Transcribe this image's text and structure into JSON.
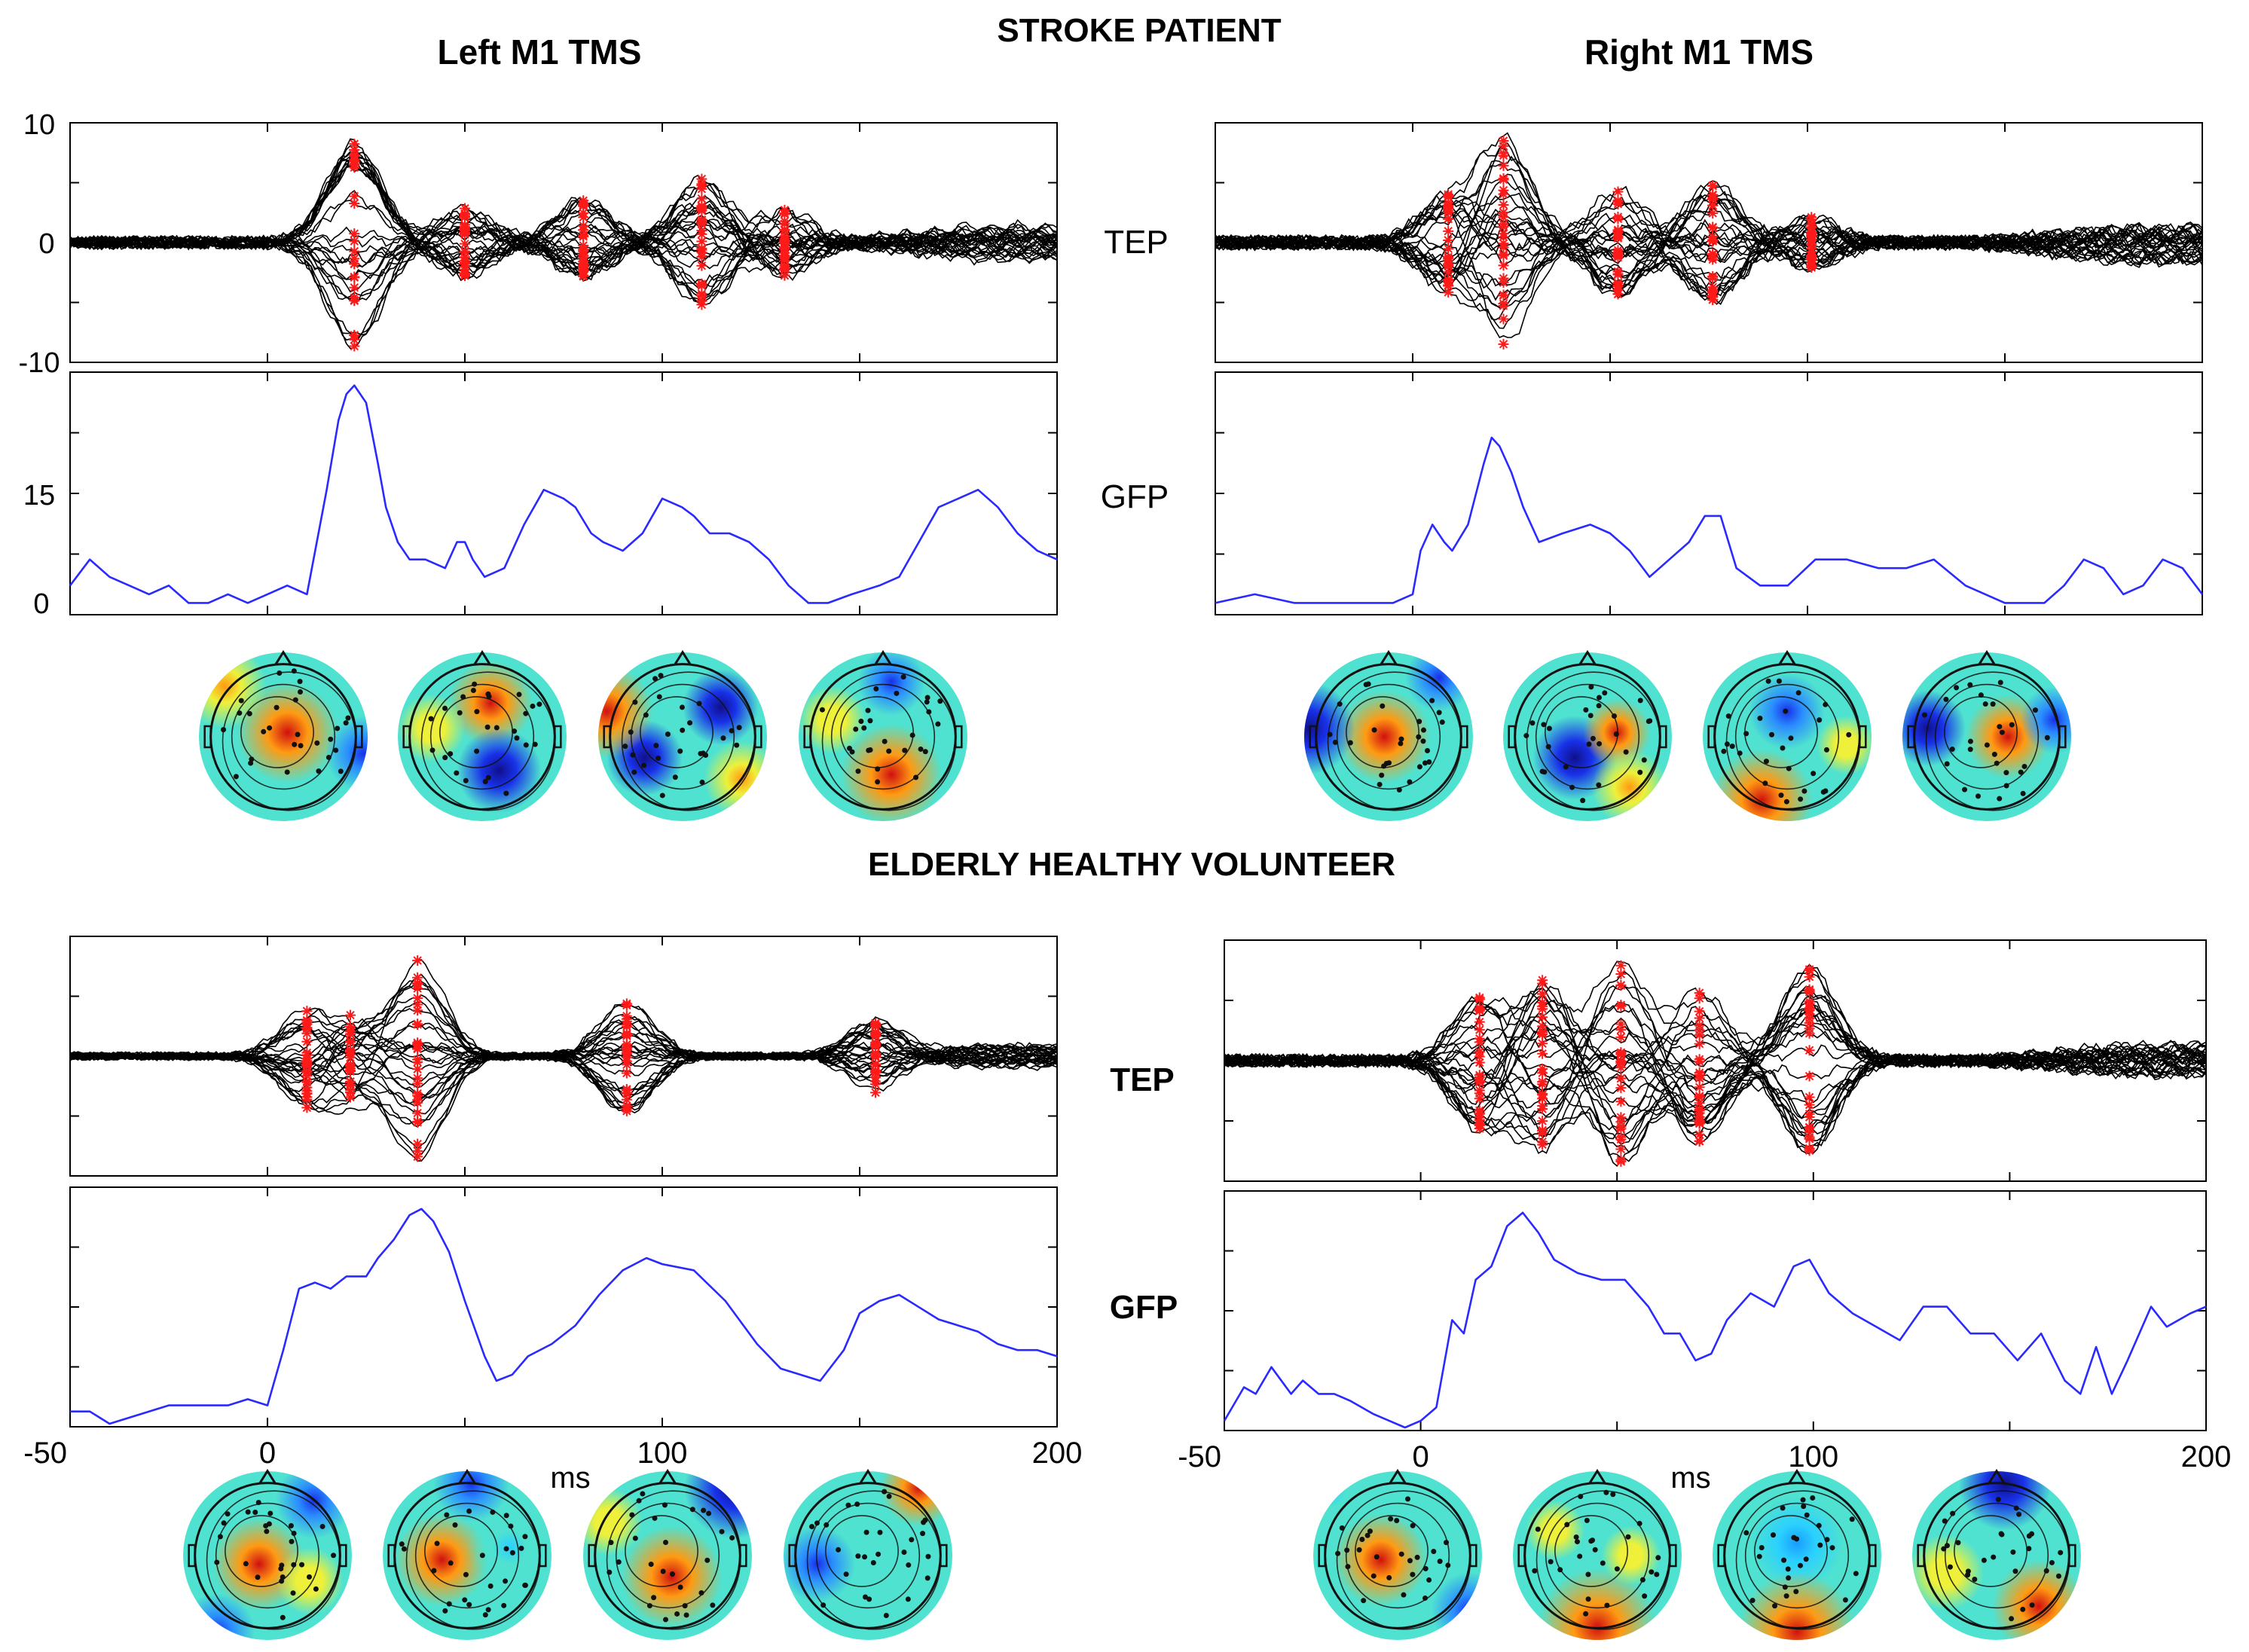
{
  "titles": {
    "stroke": "STROKE PATIENT",
    "healthy": "ELDERLY HEALTHY VOLUNTEER",
    "left_col": "Left M1 TMS",
    "right_col": "Right M1 TMS"
  },
  "row_labels": {
    "tep_top": "TEP",
    "gfp_top": "GFP",
    "tep_bottom": "TEP",
    "gfp_bottom": "GFP"
  },
  "axis": {
    "tep_ticks": [
      "10",
      "0",
      "-10"
    ],
    "gfp_ticks": [
      "15",
      "0"
    ],
    "x_ticks": [
      "-50",
      "0",
      "100",
      "200"
    ],
    "x_unit": "ms"
  },
  "colors": {
    "tep_trace": "#000000",
    "marker": "#ff1a1a",
    "gfp_line": "#2a2aff"
  },
  "chart_data": [
    {
      "type": "line",
      "panel": "stroke-left-tep",
      "xlim": [
        -50,
        200
      ],
      "ylim": [
        -10,
        10
      ],
      "peak_markers_ms": [
        22,
        50,
        80,
        110,
        131
      ],
      "peak_amplitudes": [
        9,
        3,
        4,
        6,
        3
      ],
      "n_channels": 30
    },
    {
      "type": "line",
      "panel": "stroke-left-gfp",
      "xlim": [
        -50,
        200
      ],
      "ylim": [
        0,
        27
      ],
      "x": [
        -50,
        -45,
        -40,
        -35,
        -30,
        -25,
        -20,
        -15,
        -10,
        -5,
        0,
        5,
        10,
        15,
        18,
        20,
        22,
        25,
        28,
        30,
        33,
        36,
        40,
        45,
        48,
        50,
        52,
        55,
        60,
        65,
        70,
        75,
        78,
        82,
        85,
        90,
        95,
        100,
        105,
        108,
        112,
        117,
        122,
        127,
        132,
        137,
        142,
        148,
        155,
        160,
        165,
        170,
        175,
        180,
        185,
        190,
        195,
        200
      ],
      "y": [
        3,
        6,
        4,
        3,
        2,
        3,
        1,
        1,
        2,
        1,
        2,
        3,
        2,
        14,
        22,
        25,
        26,
        24,
        17,
        12,
        8,
        6,
        6,
        5,
        8,
        8,
        6,
        4,
        5,
        10,
        14,
        13,
        12,
        9,
        8,
        7,
        9,
        13,
        12,
        11,
        9,
        9,
        8,
        6,
        3,
        1,
        1,
        2,
        3,
        4,
        8,
        12,
        13,
        14,
        12,
        9,
        7,
        6
      ]
    },
    {
      "type": "line",
      "panel": "stroke-right-tep",
      "xlim": [
        -50,
        200
      ],
      "ylim": [
        -10,
        10
      ],
      "peak_markers_ms": [
        9,
        23,
        52,
        76,
        101
      ],
      "peak_amplitudes": [
        4,
        8,
        4,
        5,
        2
      ],
      "n_channels": 30
    },
    {
      "type": "line",
      "panel": "stroke-right-gfp",
      "xlim": [
        -50,
        200
      ],
      "ylim": [
        0,
        27
      ],
      "x": [
        -50,
        -40,
        -30,
        -20,
        -10,
        -5,
        0,
        2,
        5,
        8,
        10,
        14,
        18,
        20,
        22,
        25,
        28,
        32,
        38,
        45,
        50,
        55,
        60,
        65,
        70,
        74,
        78,
        82,
        88,
        95,
        102,
        110,
        118,
        125,
        132,
        140,
        150,
        160,
        165,
        170,
        175,
        180,
        185,
        190,
        195,
        200
      ],
      "y": [
        1,
        2,
        1,
        1,
        1,
        1,
        2,
        7,
        10,
        8,
        7,
        10,
        17,
        20,
        19,
        16,
        12,
        8,
        9,
        10,
        9,
        7,
        4,
        6,
        8,
        11,
        11,
        5,
        3,
        3,
        6,
        6,
        5,
        5,
        6,
        3,
        1,
        1,
        3,
        6,
        5,
        2,
        3,
        6,
        5,
        2
      ]
    },
    {
      "type": "line",
      "panel": "healthy-left-tep",
      "xlim": [
        -50,
        200
      ],
      "peak_markers_ms": [
        10,
        21,
        38,
        91,
        154
      ],
      "peak_amplitudes": [
        7,
        6,
        14,
        8,
        5
      ],
      "n_channels": 30
    },
    {
      "type": "line",
      "panel": "healthy-left-gfp",
      "xlim": [
        -50,
        200
      ],
      "x": [
        -50,
        -45,
        -40,
        -35,
        -30,
        -25,
        -20,
        -15,
        -10,
        -5,
        0,
        4,
        8,
        12,
        16,
        20,
        25,
        28,
        32,
        36,
        39,
        42,
        46,
        50,
        55,
        58,
        62,
        66,
        72,
        78,
        84,
        90,
        96,
        100,
        108,
        116,
        124,
        130,
        140,
        146,
        150,
        155,
        160,
        165,
        170,
        175,
        180,
        185,
        190,
        195,
        200
      ],
      "y": [
        2,
        2,
        0,
        1,
        2,
        3,
        3,
        3,
        3,
        4,
        3,
        12,
        22,
        23,
        22,
        24,
        24,
        27,
        30,
        34,
        35,
        33,
        28,
        20,
        11,
        7,
        8,
        11,
        13,
        16,
        21,
        25,
        27,
        26,
        25,
        20,
        13,
        9,
        7,
        12,
        18,
        20,
        21,
        19,
        17,
        16,
        15,
        13,
        12,
        12,
        11
      ]
    },
    {
      "type": "line",
      "panel": "healthy-right-tep",
      "xlim": [
        -50,
        200
      ],
      "peak_markers_ms": [
        15,
        31,
        51,
        71,
        99
      ],
      "peak_amplitudes": [
        6,
        9,
        9,
        7,
        8
      ],
      "n_channels": 30
    },
    {
      "type": "line",
      "panel": "healthy-right-gfp",
      "xlim": [
        -50,
        200
      ],
      "x": [
        -50,
        -45,
        -42,
        -38,
        -33,
        -30,
        -26,
        -22,
        -18,
        -12,
        -8,
        -4,
        0,
        4,
        8,
        11,
        14,
        18,
        22,
        26,
        30,
        34,
        40,
        46,
        52,
        58,
        62,
        66,
        70,
        74,
        78,
        84,
        90,
        95,
        99,
        104,
        110,
        116,
        122,
        128,
        134,
        140,
        146,
        152,
        158,
        164,
        168,
        172,
        176,
        180,
        186,
        190,
        196,
        200
      ],
      "y": [
        1,
        6,
        5,
        9,
        5,
        7,
        5,
        5,
        4,
        2,
        1,
        0,
        1,
        3,
        16,
        14,
        22,
        24,
        30,
        32,
        29,
        25,
        23,
        22,
        22,
        18,
        14,
        14,
        10,
        11,
        16,
        20,
        18,
        24,
        25,
        20,
        17,
        15,
        13,
        18,
        18,
        14,
        14,
        10,
        14,
        7,
        5,
        12,
        5,
        10,
        18,
        15,
        17,
        18
      ]
    }
  ]
}
